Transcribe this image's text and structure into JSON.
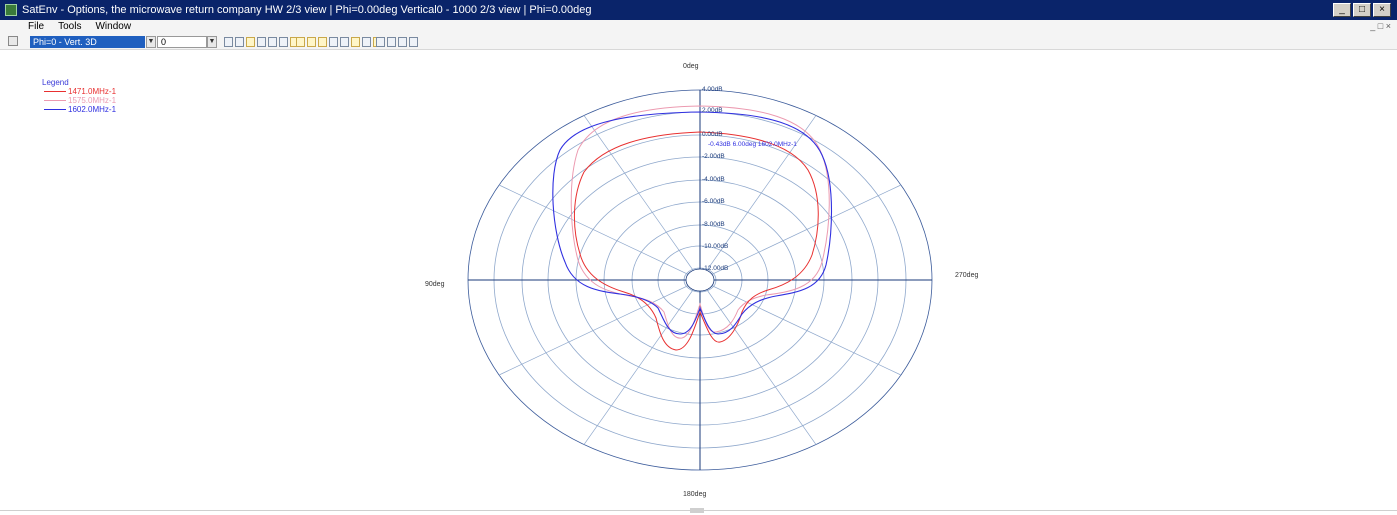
{
  "window": {
    "title": "SatEnv - Options, the microwave return company HW 2/3 view | Phi=0.00deg Vertical0 - 1000 2/3 view | Phi=0.00deg",
    "buttons": {
      "minimize": "_",
      "maximize": "□",
      "close": "×"
    }
  },
  "menu": {
    "items": [
      "File",
      "Tools",
      "Window"
    ],
    "mdi_controls": "_ □ ×"
  },
  "toolbar": {
    "view_combo": {
      "value": "Phi=0 - Vert. 3D"
    },
    "freq_combo": {
      "value": "0"
    }
  },
  "legend": {
    "title": "Legend",
    "entries": [
      {
        "label": "1471.0MHz-1",
        "color": "#e83030"
      },
      {
        "label": "1575.0MHz-1",
        "color": "#ec9ab0"
      },
      {
        "label": "1602.0MHz-1",
        "color": "#3030e0"
      }
    ]
  },
  "polar_plot": {
    "angle_labels": {
      "top": "0deg",
      "right": "270deg",
      "bottom": "180deg",
      "left": "90deg"
    },
    "ring_labels": [
      "4.00dB",
      "2.00dB",
      "0.00dB",
      "-2.00dB",
      "-4.00dB",
      "-6.00dB",
      "-8.00dB",
      "-10.00dB",
      "-12.00dB"
    ],
    "marker_label": "-0.43dB 6.00deg 1602.0MHz-1",
    "colors": {
      "grid": "#8fa8cc",
      "axis": "#1a3a7a"
    }
  },
  "status": {
    "bottom_marker": ""
  }
}
